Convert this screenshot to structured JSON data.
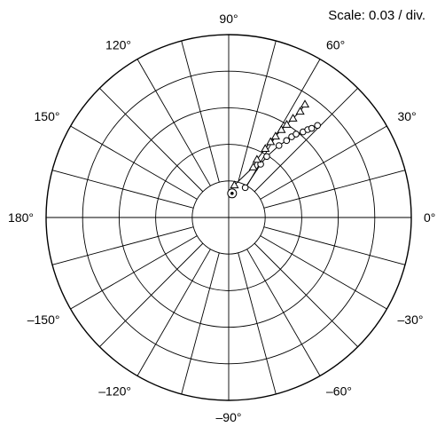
{
  "chart_data": {
    "type": "scatter",
    "subtype": "polar",
    "scale_text": "Scale: 0.03 / div.",
    "units_per_division": 0.03,
    "radial_divisions": 5,
    "inner_circle_divisions": 1,
    "angular_grid_step_deg": 15,
    "angle_tick_labels": [
      {
        "angle": 0,
        "text": "0°"
      },
      {
        "angle": 30,
        "text": "30°"
      },
      {
        "angle": 60,
        "text": "60°"
      },
      {
        "angle": 90,
        "text": "90°"
      },
      {
        "angle": 120,
        "text": "120°"
      },
      {
        "angle": 150,
        "text": "150°"
      },
      {
        "angle": 180,
        "text": "180°"
      },
      {
        "angle": -150,
        "text": "–150°"
      },
      {
        "angle": -120,
        "text": "–120°"
      },
      {
        "angle": -90,
        "text": "–90°"
      },
      {
        "angle": -60,
        "text": "–60°"
      },
      {
        "angle": -30,
        "text": "–30°"
      }
    ],
    "series": [
      {
        "marker": "circle",
        "connected": true,
        "points": [
          {
            "angle": 61,
            "r": 0.028
          },
          {
            "angle": 59,
            "r": 0.051
          },
          {
            "angle": 58,
            "r": 0.059
          },
          {
            "angle": 55,
            "r": 0.072
          },
          {
            "angle": 53,
            "r": 0.079
          },
          {
            "angle": 52,
            "r": 0.084
          },
          {
            "angle": 51,
            "r": 0.088
          },
          {
            "angle": 49,
            "r": 0.093
          },
          {
            "angle": 48,
            "r": 0.097
          },
          {
            "angle": 47,
            "r": 0.1
          },
          {
            "angle": 46,
            "r": 0.105
          }
        ]
      },
      {
        "marker": "triangle",
        "connected": true,
        "points": [
          {
            "angle": 80,
            "r": 0.027
          },
          {
            "angle": 64,
            "r": 0.046
          },
          {
            "angle": 64,
            "r": 0.053
          },
          {
            "angle": 62,
            "r": 0.064
          },
          {
            "angle": 61,
            "r": 0.071
          },
          {
            "angle": 60,
            "r": 0.077
          },
          {
            "angle": 59,
            "r": 0.084
          },
          {
            "angle": 58,
            "r": 0.09
          },
          {
            "angle": 57,
            "r": 0.097
          },
          {
            "angle": 56,
            "r": 0.105
          },
          {
            "angle": 56,
            "r": 0.112
          }
        ]
      },
      {
        "marker": "target",
        "connected": false,
        "points": [
          {
            "angle": 82,
            "r": 0.02
          }
        ]
      }
    ]
  }
}
